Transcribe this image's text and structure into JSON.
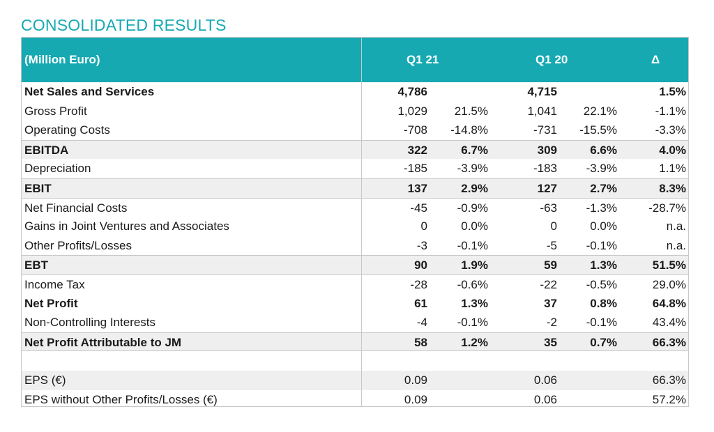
{
  "title": "CONSOLIDATED RESULTS",
  "header": {
    "unit": "(Million Euro)",
    "col1": "Q1 21",
    "col2": "Q1 20",
    "delta": "Δ"
  },
  "rows": [
    {
      "label": "Net Sales and Services",
      "v1": "4,786",
      "p1": "",
      "v2": "4,715",
      "p2": "",
      "d": "1.5%"
    },
    {
      "label": "Gross Profit",
      "v1": "1,029",
      "p1": "21.5%",
      "v2": "1,041",
      "p2": "22.1%",
      "d": "-1.1%"
    },
    {
      "label": "Operating Costs",
      "v1": "-708",
      "p1": "-14.8%",
      "v2": "-731",
      "p2": "-15.5%",
      "d": "-3.3%"
    },
    {
      "label": "EBITDA",
      "v1": "322",
      "p1": "6.7%",
      "v2": "309",
      "p2": "6.6%",
      "d": "4.0%"
    },
    {
      "label": "Depreciation",
      "v1": "-185",
      "p1": "-3.9%",
      "v2": "-183",
      "p2": "-3.9%",
      "d": "1.1%"
    },
    {
      "label": "EBIT",
      "v1": "137",
      "p1": "2.9%",
      "v2": "127",
      "p2": "2.7%",
      "d": "8.3%"
    },
    {
      "label": "Net Financial Costs",
      "v1": "-45",
      "p1": "-0.9%",
      "v2": "-63",
      "p2": "-1.3%",
      "d": "-28.7%"
    },
    {
      "label": "Gains in Joint Ventures and Associates",
      "v1": "0",
      "p1": "0.0%",
      "v2": "0",
      "p2": "0.0%",
      "d": "n.a."
    },
    {
      "label": "Other Profits/Losses",
      "v1": "-3",
      "p1": "-0.1%",
      "v2": "-5",
      "p2": "-0.1%",
      "d": "n.a."
    },
    {
      "label": "EBT",
      "v1": "90",
      "p1": "1.9%",
      "v2": "59",
      "p2": "1.3%",
      "d": "51.5%"
    },
    {
      "label": "Income Tax",
      "v1": "-28",
      "p1": "-0.6%",
      "v2": "-22",
      "p2": "-0.5%",
      "d": "29.0%"
    },
    {
      "label": "Net Profit",
      "v1": "61",
      "p1": "1.3%",
      "v2": "37",
      "p2": "0.8%",
      "d": "64.8%"
    },
    {
      "label": "Non-Controlling Interests",
      "v1": "-4",
      "p1": "-0.1%",
      "v2": "-2",
      "p2": "-0.1%",
      "d": "43.4%"
    },
    {
      "label": "Net Profit Attributable to JM",
      "v1": "58",
      "p1": "1.2%",
      "v2": "35",
      "p2": "0.7%",
      "d": "66.3%"
    },
    {
      "label": "",
      "v1": "",
      "p1": "",
      "v2": "",
      "p2": "",
      "d": ""
    },
    {
      "label": "EPS (€)",
      "v1": "0.09",
      "p1": "",
      "v2": "0.06",
      "p2": "",
      "d": "66.3%"
    },
    {
      "label": "EPS without Other Profits/Losses (€)",
      "v1": "0.09",
      "p1": "",
      "v2": "0.06",
      "p2": "",
      "d": "57.2%"
    }
  ]
}
